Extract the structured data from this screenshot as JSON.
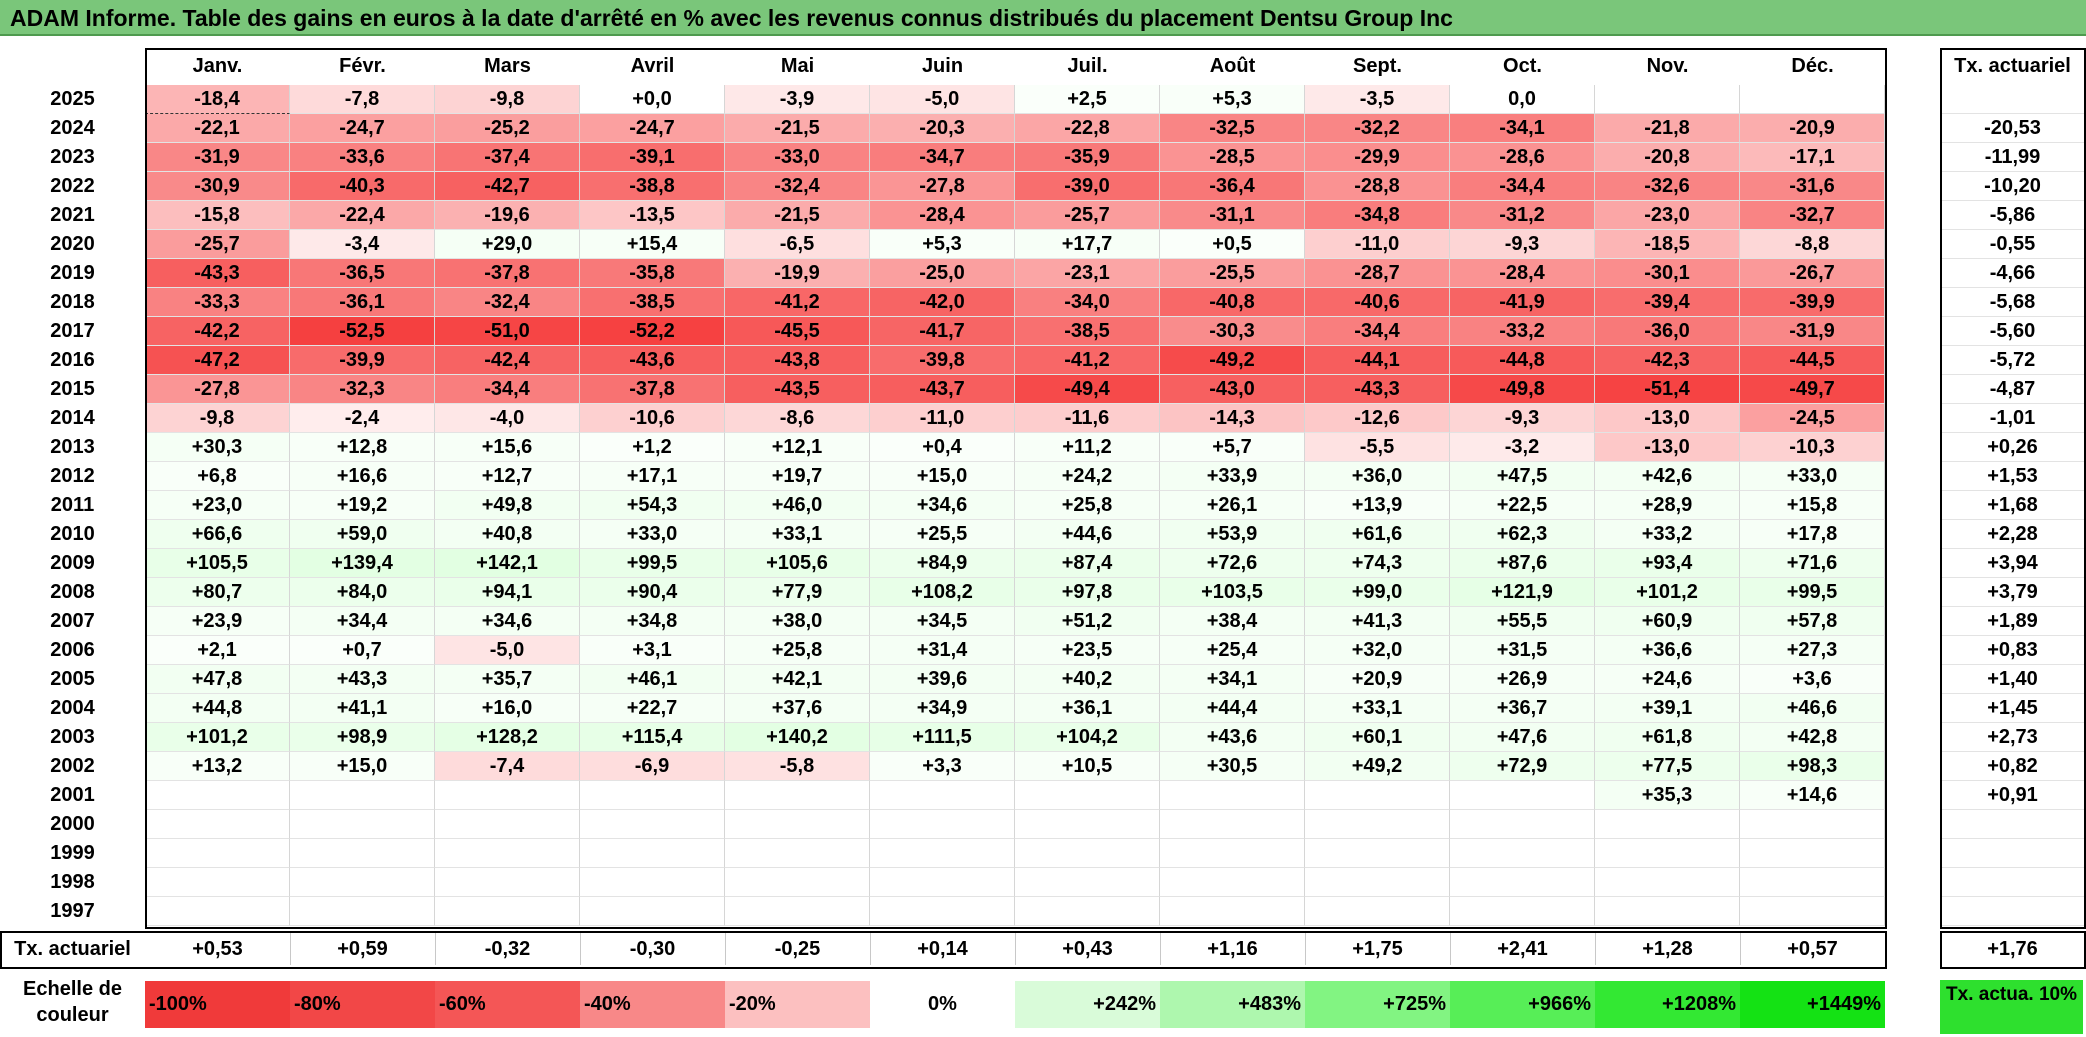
{
  "title": "ADAM Informe. Table des gains en euros à la date d'arrêté en % avec les revenus connus distribués du placement Dentsu Group Inc",
  "chart_data": {
    "type": "table",
    "columns": [
      "Janv.",
      "Févr.",
      "Mars",
      "Avril",
      "Mai",
      "Juin",
      "Juil.",
      "Août",
      "Sept.",
      "Oct.",
      "Nov.",
      "Déc."
    ],
    "rate_header": "Tx. actuariel",
    "rows": [
      {
        "year": "2025",
        "values": [
          "-18,4",
          "-7,8",
          "-9,8",
          "+0,0",
          "-3,9",
          "-5,0",
          "+2,5",
          "+5,3",
          "-3,5",
          "0,0",
          "",
          ""
        ],
        "rate": ""
      },
      {
        "year": "2024",
        "values": [
          "-22,1",
          "-24,7",
          "-25,2",
          "-24,7",
          "-21,5",
          "-20,3",
          "-22,8",
          "-32,5",
          "-32,2",
          "-34,1",
          "-21,8",
          "-20,9"
        ],
        "rate": "-20,53"
      },
      {
        "year": "2023",
        "values": [
          "-31,9",
          "-33,6",
          "-37,4",
          "-39,1",
          "-33,0",
          "-34,7",
          "-35,9",
          "-28,5",
          "-29,9",
          "-28,6",
          "-20,8",
          "-17,1"
        ],
        "rate": "-11,99"
      },
      {
        "year": "2022",
        "values": [
          "-30,9",
          "-40,3",
          "-42,7",
          "-38,8",
          "-32,4",
          "-27,8",
          "-39,0",
          "-36,4",
          "-28,8",
          "-34,4",
          "-32,6",
          "-31,6"
        ],
        "rate": "-10,20"
      },
      {
        "year": "2021",
        "values": [
          "-15,8",
          "-22,4",
          "-19,6",
          "-13,5",
          "-21,5",
          "-28,4",
          "-25,7",
          "-31,1",
          "-34,8",
          "-31,2",
          "-23,0",
          "-32,7"
        ],
        "rate": "-5,86"
      },
      {
        "year": "2020",
        "values": [
          "-25,7",
          "-3,4",
          "+29,0",
          "+15,4",
          "-6,5",
          "+5,3",
          "+17,7",
          "+0,5",
          "-11,0",
          "-9,3",
          "-18,5",
          "-8,8"
        ],
        "rate": "-0,55"
      },
      {
        "year": "2019",
        "values": [
          "-43,3",
          "-36,5",
          "-37,8",
          "-35,8",
          "-19,9",
          "-25,0",
          "-23,1",
          "-25,5",
          "-28,7",
          "-28,4",
          "-30,1",
          "-26,7"
        ],
        "rate": "-4,66"
      },
      {
        "year": "2018",
        "values": [
          "-33,3",
          "-36,1",
          "-32,4",
          "-38,5",
          "-41,2",
          "-42,0",
          "-34,0",
          "-40,8",
          "-40,6",
          "-41,9",
          "-39,4",
          "-39,9"
        ],
        "rate": "-5,68"
      },
      {
        "year": "2017",
        "values": [
          "-42,2",
          "-52,5",
          "-51,0",
          "-52,2",
          "-45,5",
          "-41,7",
          "-38,5",
          "-30,3",
          "-34,4",
          "-33,2",
          "-36,0",
          "-31,9"
        ],
        "rate": "-5,60"
      },
      {
        "year": "2016",
        "values": [
          "-47,2",
          "-39,9",
          "-42,4",
          "-43,6",
          "-43,8",
          "-39,8",
          "-41,2",
          "-49,2",
          "-44,1",
          "-44,8",
          "-42,3",
          "-44,5"
        ],
        "rate": "-5,72"
      },
      {
        "year": "2015",
        "values": [
          "-27,8",
          "-32,3",
          "-34,4",
          "-37,8",
          "-43,5",
          "-43,7",
          "-49,4",
          "-43,0",
          "-43,3",
          "-49,8",
          "-51,4",
          "-49,7"
        ],
        "rate": "-4,87"
      },
      {
        "year": "2014",
        "values": [
          "-9,8",
          "-2,4",
          "-4,0",
          "-10,6",
          "-8,6",
          "-11,0",
          "-11,6",
          "-14,3",
          "-12,6",
          "-9,3",
          "-13,0",
          "-24,5"
        ],
        "rate": "-1,01"
      },
      {
        "year": "2013",
        "values": [
          "+30,3",
          "+12,8",
          "+15,6",
          "+1,2",
          "+12,1",
          "+0,4",
          "+11,2",
          "+5,7",
          "-5,5",
          "-3,2",
          "-13,0",
          "-10,3"
        ],
        "rate": "+0,26"
      },
      {
        "year": "2012",
        "values": [
          "+6,8",
          "+16,6",
          "+12,7",
          "+17,1",
          "+19,7",
          "+15,0",
          "+24,2",
          "+33,9",
          "+36,0",
          "+47,5",
          "+42,6",
          "+33,0"
        ],
        "rate": "+1,53"
      },
      {
        "year": "2011",
        "values": [
          "+23,0",
          "+19,2",
          "+49,8",
          "+54,3",
          "+46,0",
          "+34,6",
          "+25,8",
          "+26,1",
          "+13,9",
          "+22,5",
          "+28,9",
          "+15,8"
        ],
        "rate": "+1,68"
      },
      {
        "year": "2010",
        "values": [
          "+66,6",
          "+59,0",
          "+40,8",
          "+33,0",
          "+33,1",
          "+25,5",
          "+44,6",
          "+53,9",
          "+61,6",
          "+62,3",
          "+33,2",
          "+17,8"
        ],
        "rate": "+2,28"
      },
      {
        "year": "2009",
        "values": [
          "+105,5",
          "+139,4",
          "+142,1",
          "+99,5",
          "+105,6",
          "+84,9",
          "+87,4",
          "+72,6",
          "+74,3",
          "+87,6",
          "+93,4",
          "+71,6"
        ],
        "rate": "+3,94"
      },
      {
        "year": "2008",
        "values": [
          "+80,7",
          "+84,0",
          "+94,1",
          "+90,4",
          "+77,9",
          "+108,2",
          "+97,8",
          "+103,5",
          "+99,0",
          "+121,9",
          "+101,2",
          "+99,5"
        ],
        "rate": "+3,79"
      },
      {
        "year": "2007",
        "values": [
          "+23,9",
          "+34,4",
          "+34,6",
          "+34,8",
          "+38,0",
          "+34,5",
          "+51,2",
          "+38,4",
          "+41,3",
          "+55,5",
          "+60,9",
          "+57,8"
        ],
        "rate": "+1,89"
      },
      {
        "year": "2006",
        "values": [
          "+2,1",
          "+0,7",
          "-5,0",
          "+3,1",
          "+25,8",
          "+31,4",
          "+23,5",
          "+25,4",
          "+32,0",
          "+31,5",
          "+36,6",
          "+27,3"
        ],
        "rate": "+0,83"
      },
      {
        "year": "2005",
        "values": [
          "+47,8",
          "+43,3",
          "+35,7",
          "+46,1",
          "+42,1",
          "+39,6",
          "+40,2",
          "+34,1",
          "+20,9",
          "+26,9",
          "+24,6",
          "+3,6"
        ],
        "rate": "+1,40"
      },
      {
        "year": "2004",
        "values": [
          "+44,8",
          "+41,1",
          "+16,0",
          "+22,7",
          "+37,6",
          "+34,9",
          "+36,1",
          "+44,4",
          "+33,1",
          "+36,7",
          "+39,1",
          "+46,6"
        ],
        "rate": "+1,45"
      },
      {
        "year": "2003",
        "values": [
          "+101,2",
          "+98,9",
          "+128,2",
          "+115,4",
          "+140,2",
          "+111,5",
          "+104,2",
          "+43,6",
          "+60,1",
          "+47,6",
          "+61,8",
          "+42,8"
        ],
        "rate": "+2,73"
      },
      {
        "year": "2002",
        "values": [
          "+13,2",
          "+15,0",
          "-7,4",
          "-6,9",
          "-5,8",
          "+3,3",
          "+10,5",
          "+30,5",
          "+49,2",
          "+72,9",
          "+77,5",
          "+98,3"
        ],
        "rate": "+0,82"
      },
      {
        "year": "2001",
        "values": [
          "",
          "",
          "",
          "",
          "",
          "",
          "",
          "",
          "",
          "",
          "+35,3",
          "+14,6"
        ],
        "rate": "+0,91"
      },
      {
        "year": "2000",
        "values": [
          "",
          "",
          "",
          "",
          "",
          "",
          "",
          "",
          "",
          "",
          "",
          ""
        ],
        "rate": ""
      },
      {
        "year": "1999",
        "values": [
          "",
          "",
          "",
          "",
          "",
          "",
          "",
          "",
          "",
          "",
          "",
          ""
        ],
        "rate": ""
      },
      {
        "year": "1998",
        "values": [
          "",
          "",
          "",
          "",
          "",
          "",
          "",
          "",
          "",
          "",
          "",
          ""
        ],
        "rate": ""
      },
      {
        "year": "1997",
        "values": [
          "",
          "",
          "",
          "",
          "",
          "",
          "",
          "",
          "",
          "",
          "",
          ""
        ],
        "rate": ""
      }
    ],
    "footer": {
      "label": "Tx. actuariel",
      "values": [
        "+0,53",
        "+0,59",
        "-0,32",
        "-0,30",
        "-0,25",
        "+0,14",
        "+0,43",
        "+1,16",
        "+1,75",
        "+2,41",
        "+1,28",
        "+0,57"
      ],
      "rate": "+1,76"
    },
    "scale": {
      "label": "Echelle de couleur",
      "steps": [
        {
          "text": "-100%",
          "color": "#f03a3a",
          "align": "left"
        },
        {
          "text": "-80%",
          "color": "#f24747",
          "align": "left"
        },
        {
          "text": "-60%",
          "color": "#f45656",
          "align": "left"
        },
        {
          "text": "-40%",
          "color": "#f88888",
          "align": "left"
        },
        {
          "text": "-20%",
          "color": "#fcc0c0",
          "align": "left"
        },
        {
          "text": "0%",
          "color": "#ffffff",
          "align": "center"
        },
        {
          "text": "+242%",
          "color": "#d9fbd9",
          "align": "right"
        },
        {
          "text": "+483%",
          "color": "#aef7ae",
          "align": "right"
        },
        {
          "text": "+725%",
          "color": "#82f482",
          "align": "right"
        },
        {
          "text": "+966%",
          "color": "#57ee57",
          "align": "right"
        },
        {
          "text": "+1208%",
          "color": "#33e833",
          "align": "right"
        },
        {
          "text": "+1449%",
          "color": "#14e214",
          "align": "right"
        }
      ],
      "legend": "Tx. actua. 10%",
      "legend_color": "#2ee02e"
    }
  }
}
